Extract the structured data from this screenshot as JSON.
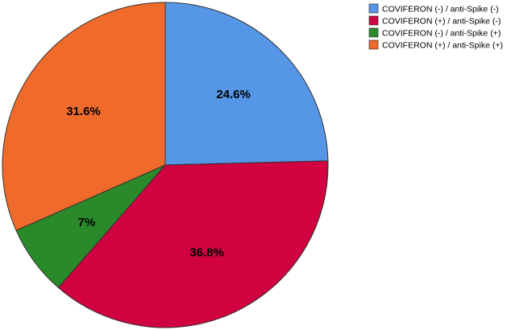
{
  "chart_data": {
    "type": "pie",
    "title": "",
    "categories": [
      "COVIFERON (-) / anti-Spike (-)",
      "COVIFERON (+) / anti-Spike (-)",
      "COVIFERON (-) / anti-Spike (+)",
      "COVIFERON (+) / anti-Spike (+)"
    ],
    "values": [
      24.6,
      36.8,
      7,
      31.6
    ],
    "labels": [
      "24.6%",
      "36.8%",
      "7%",
      "31.6%"
    ],
    "colors": [
      "#5596e6",
      "#d0023f",
      "#2a8a2a",
      "#f06a2c"
    ],
    "start_angle_deg": 0,
    "direction": "clockwise",
    "legend": "top-right"
  }
}
